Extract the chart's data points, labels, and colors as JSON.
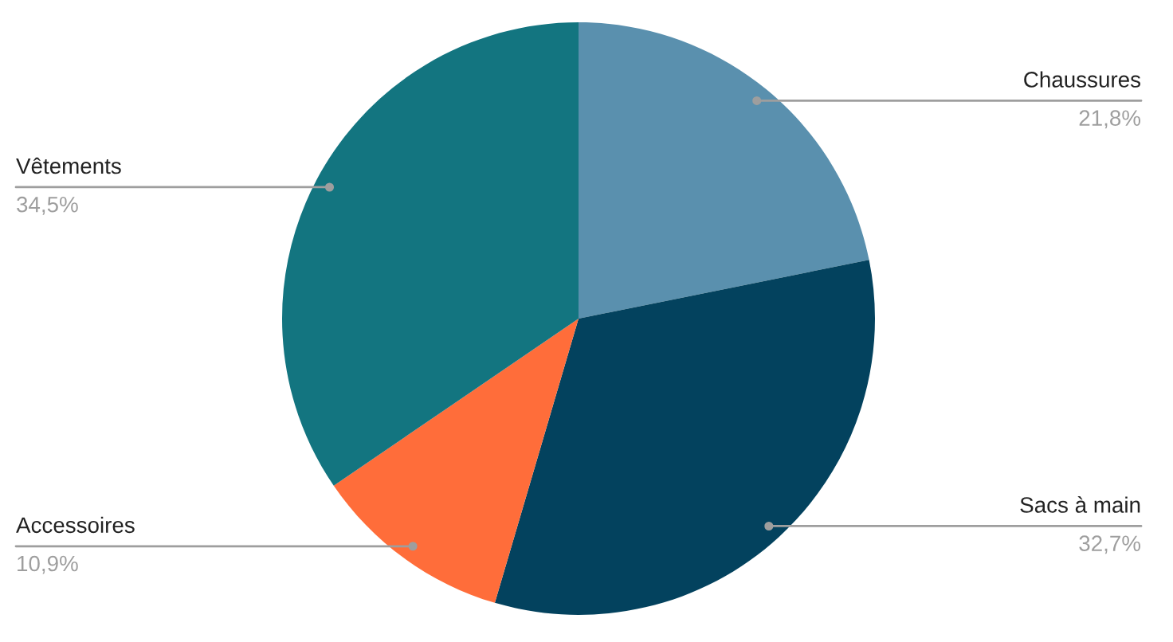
{
  "chart_data": {
    "type": "pie",
    "categories": [
      "Chaussures",
      "Sacs à main",
      "Accessoires",
      "Vêtements"
    ],
    "values": [
      21.8,
      32.7,
      10.9,
      34.5
    ],
    "value_labels": [
      "21,8%",
      "32,7%",
      "10,9%",
      "34,5%"
    ],
    "colors": [
      "#5a90ae",
      "#03425e",
      "#ff6d3a",
      "#137580"
    ],
    "legend": false
  }
}
